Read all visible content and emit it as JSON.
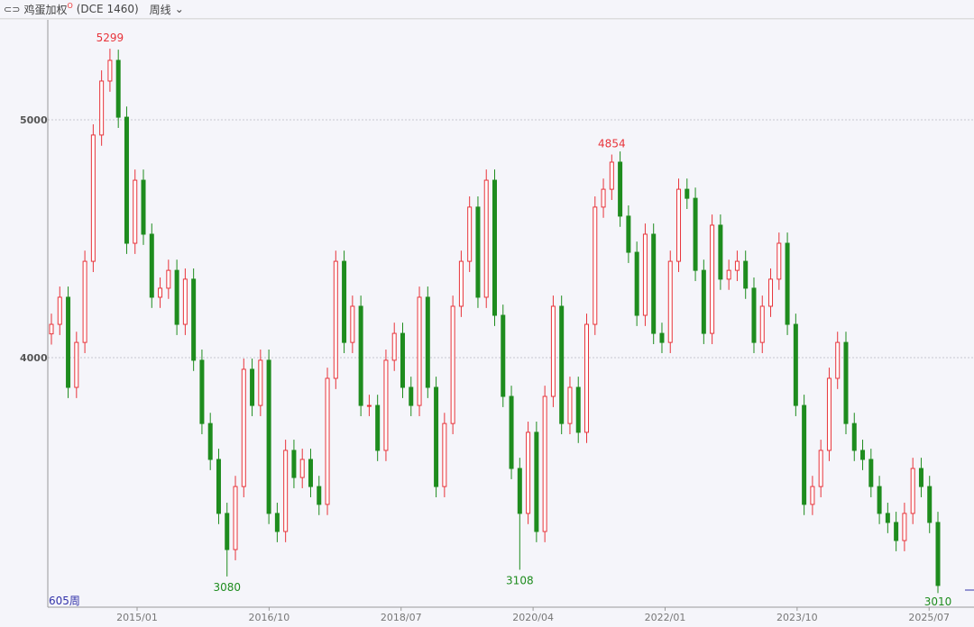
{
  "header": {
    "link_icon": "link-icon",
    "title": "鸡蛋加权",
    "title_mark": "O",
    "code": "(DCE 1460)",
    "period": "周线",
    "dropdown_icon": "chevron-down-icon"
  },
  "bar_count_label": "605周",
  "colors": {
    "up": "#e8333a",
    "down": "#1e8c1e",
    "grid": "#c8c8d0",
    "count": "#3333aa"
  },
  "chart_data": {
    "type": "candlestick",
    "y_ticks": [
      4000,
      5000
    ],
    "ylim": [
      2900,
      5350
    ],
    "x_ticks": [
      "2015/01",
      "2016/10",
      "2018/07",
      "2020/04",
      "2022/01",
      "2023/10",
      "2025/07"
    ],
    "grid": "horizontal dotted",
    "closes": [
      4140,
      4254,
      3875,
      4064,
      4405,
      4936,
      5163,
      5250,
      5011,
      4481,
      4746,
      4519,
      4254,
      4292,
      4367,
      4140,
      4330,
      3989,
      3723,
      3572,
      3345,
      3193,
      3458,
      3951,
      3799,
      3989,
      3345,
      3269,
      3610,
      3496,
      3572,
      3458,
      3383,
      3913,
      4405,
      4064,
      4216,
      3799,
      3799,
      3610,
      3989,
      4102,
      3875,
      3799,
      4254,
      3875,
      3458,
      3723,
      4216,
      4405,
      4633,
      4254,
      4746,
      4178,
      3837,
      3534,
      3345,
      3686,
      3269,
      3837,
      4216,
      3723,
      3875,
      3686,
      4140,
      4633,
      4708,
      4822,
      4595,
      4443,
      4178,
      4519,
      4102,
      4064,
      4405,
      4708,
      4670,
      4367,
      4102,
      4557,
      4330,
      4367,
      4405,
      4292,
      4064,
      4216,
      4330,
      4481,
      4140,
      3799,
      3383,
      3458,
      3610,
      3913,
      4064,
      3723,
      3610,
      3572,
      3458,
      3345,
      3307,
      3231,
      3345,
      3534,
      3458,
      3307,
      3042
    ],
    "annotations": [
      {
        "label": "5299",
        "value": 5299,
        "index": 7,
        "type": "high"
      },
      {
        "label": "3080",
        "value": 3080,
        "index": 21,
        "type": "low"
      },
      {
        "label": "3108",
        "value": 3108,
        "index": 56,
        "type": "low"
      },
      {
        "label": "4854",
        "value": 4854,
        "index": 67,
        "type": "high"
      },
      {
        "label": "3010",
        "value": 3010,
        "index": 106,
        "type": "low"
      }
    ]
  }
}
